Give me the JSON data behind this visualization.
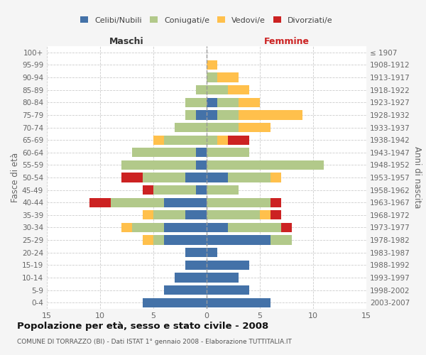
{
  "age_groups": [
    "100+",
    "95-99",
    "90-94",
    "85-89",
    "80-84",
    "75-79",
    "70-74",
    "65-69",
    "60-64",
    "55-59",
    "50-54",
    "45-49",
    "40-44",
    "35-39",
    "30-34",
    "25-29",
    "20-24",
    "15-19",
    "10-14",
    "5-9",
    "0-4"
  ],
  "birth_years": [
    "≤ 1907",
    "1908-1912",
    "1913-1917",
    "1918-1922",
    "1923-1927",
    "1928-1932",
    "1933-1937",
    "1938-1942",
    "1943-1947",
    "1948-1952",
    "1953-1957",
    "1958-1962",
    "1963-1967",
    "1968-1972",
    "1973-1977",
    "1978-1982",
    "1983-1987",
    "1988-1992",
    "1993-1997",
    "1998-2002",
    "2003-2007"
  ],
  "males": {
    "celibi": [
      0,
      0,
      0,
      0,
      0,
      1,
      0,
      0,
      1,
      1,
      2,
      1,
      4,
      2,
      4,
      4,
      2,
      2,
      3,
      4,
      6
    ],
    "coniugati": [
      0,
      0,
      0,
      1,
      2,
      1,
      3,
      4,
      6,
      7,
      4,
      4,
      5,
      3,
      3,
      1,
      0,
      0,
      0,
      0,
      0
    ],
    "vedovi": [
      0,
      0,
      0,
      0,
      0,
      0,
      0,
      1,
      0,
      0,
      0,
      0,
      0,
      1,
      1,
      1,
      0,
      0,
      0,
      0,
      0
    ],
    "divorziati": [
      0,
      0,
      0,
      0,
      0,
      0,
      0,
      0,
      0,
      0,
      2,
      1,
      2,
      0,
      0,
      0,
      0,
      0,
      0,
      0,
      0
    ]
  },
  "females": {
    "nubili": [
      0,
      0,
      0,
      0,
      1,
      1,
      0,
      0,
      0,
      0,
      2,
      0,
      0,
      0,
      2,
      6,
      1,
      4,
      3,
      4,
      6
    ],
    "coniugate": [
      0,
      0,
      1,
      2,
      2,
      2,
      3,
      1,
      4,
      11,
      4,
      3,
      6,
      5,
      5,
      2,
      0,
      0,
      0,
      0,
      0
    ],
    "vedove": [
      0,
      1,
      2,
      2,
      2,
      6,
      3,
      1,
      0,
      0,
      1,
      0,
      0,
      1,
      0,
      0,
      0,
      0,
      0,
      0,
      0
    ],
    "divorziate": [
      0,
      0,
      0,
      0,
      0,
      0,
      0,
      2,
      0,
      0,
      0,
      0,
      1,
      1,
      1,
      0,
      0,
      0,
      0,
      0,
      0
    ]
  },
  "colors": {
    "celibi_nubili": "#4472a8",
    "coniugati": "#b2c98a",
    "vedovi": "#ffc04c",
    "divorziati": "#cc2222"
  },
  "xlim": 15,
  "title": "Popolazione per età, sesso e stato civile - 2008",
  "subtitle": "COMUNE DI TORRAZZO (BI) - Dati ISTAT 1° gennaio 2008 - Elaborazione TUTTITALIA.IT",
  "ylabel_left": "Fasce di età",
  "ylabel_right": "Anni di nascita",
  "xlabel_male": "Maschi",
  "xlabel_female": "Femmine",
  "legend_labels": [
    "Celibi/Nubili",
    "Coniugati/e",
    "Vedovi/e",
    "Divorziati/e"
  ],
  "background_color": "#f5f5f5",
  "plot_bg": "#ffffff"
}
